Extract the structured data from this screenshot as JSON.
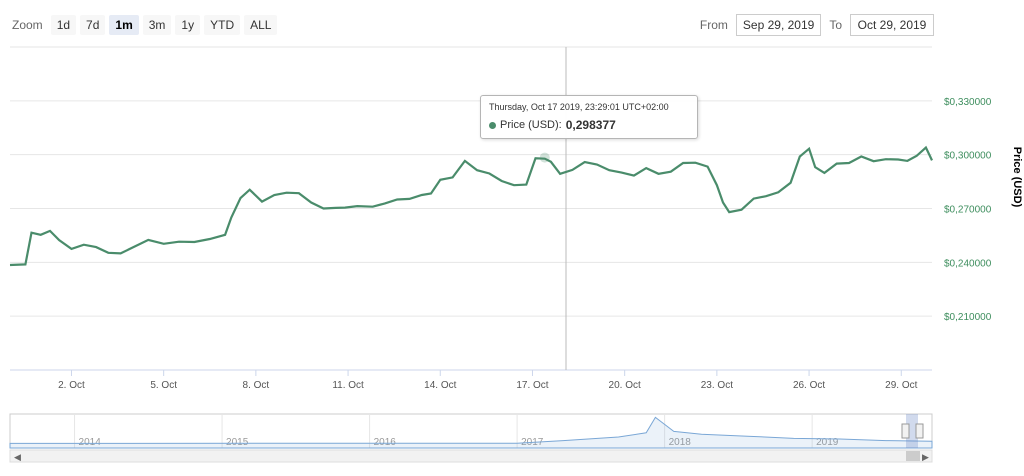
{
  "zoom": {
    "label": "Zoom",
    "buttons": [
      "1d",
      "7d",
      "1m",
      "3m",
      "1y",
      "YTD",
      "ALL"
    ],
    "active": "1m"
  },
  "range": {
    "from_label": "From",
    "from_value": "Sep 29, 2019",
    "to_label": "To",
    "to_value": "Oct 29, 2019"
  },
  "tooltip": {
    "date": "Thursday, Oct 17 2019, 23:29:01 UTC+02:00",
    "series_label": "Price (USD):",
    "value": "0,298377"
  },
  "colors": {
    "line": "#4a8c6b",
    "navigator_line": "#7aa7d6",
    "axis_text": "#3e8e5e"
  },
  "chart_data": {
    "type": "line",
    "ylabel": "Price (USD)",
    "ylim": [
      0.18,
      0.36
    ],
    "y_ticks": [
      "$0,210000",
      "$0,240000",
      "$0,270000",
      "$0,300000",
      "$0,330000"
    ],
    "y_tick_values": [
      0.21,
      0.24,
      0.27,
      0.3,
      0.33
    ],
    "x_ticks": [
      "2. Oct",
      "5. Oct",
      "8. Oct",
      "11. Oct",
      "14. Oct",
      "17. Oct",
      "20. Oct",
      "23. Oct",
      "26. Oct",
      "29. Oct"
    ],
    "x_tick_days": [
      2,
      5,
      8,
      11,
      14,
      17,
      20,
      23,
      26,
      29
    ],
    "xlim_days": [
      0.0,
      30.0
    ],
    "series": [
      {
        "name": "Price (USD)",
        "x_days": [
          0.0,
          0.5,
          0.7,
          1.0,
          1.3,
          1.6,
          2.0,
          2.4,
          2.8,
          3.2,
          3.6,
          4.0,
          4.5,
          5.0,
          5.5,
          6.0,
          6.5,
          7.0,
          7.2,
          7.5,
          7.8,
          8.2,
          8.6,
          9.0,
          9.4,
          9.8,
          10.2,
          10.6,
          10.9,
          11.3,
          11.8,
          12.2,
          12.6,
          13.0,
          13.4,
          13.7,
          14.0,
          14.4,
          14.8,
          15.2,
          15.6,
          16.0,
          16.4,
          16.8,
          17.1,
          17.4,
          17.6,
          17.9,
          18.3,
          18.7,
          19.1,
          19.5,
          19.9,
          20.3,
          20.7,
          21.1,
          21.5,
          21.9,
          22.3,
          22.7,
          23.0,
          23.2,
          23.4,
          23.8,
          24.2,
          24.6,
          25.0,
          25.4,
          25.7,
          26.0,
          26.2,
          26.5,
          26.9,
          27.3,
          27.7,
          28.1,
          28.5,
          28.9,
          29.2,
          29.5,
          29.8,
          30.0
        ],
        "values": [
          0.2385,
          0.2395,
          0.2565,
          0.256,
          0.2575,
          0.253,
          0.2475,
          0.2505,
          0.2485,
          0.246,
          0.245,
          0.249,
          0.2525,
          0.251,
          0.2515,
          0.252,
          0.253,
          0.256,
          0.265,
          0.2765,
          0.2805,
          0.2745,
          0.2775,
          0.2795,
          0.2785,
          0.274,
          0.27,
          0.271,
          0.2705,
          0.272,
          0.271,
          0.2735,
          0.275,
          0.276,
          0.2775,
          0.279,
          0.286,
          0.288,
          0.2965,
          0.292,
          0.2895,
          0.286,
          0.283,
          0.284,
          0.298,
          0.2984,
          0.296,
          0.29,
          0.2915,
          0.2965,
          0.2945,
          0.292,
          0.29,
          0.289,
          0.2925,
          0.29,
          0.2905,
          0.296,
          0.2955,
          0.294,
          0.283,
          0.274,
          0.268,
          0.27,
          0.2755,
          0.2775,
          0.279,
          0.285,
          0.299,
          0.304,
          0.293,
          0.2905,
          0.295,
          0.296,
          0.299,
          0.297,
          0.2975,
          0.298,
          0.2965,
          0.3,
          0.304,
          0.2975
        ]
      }
    ],
    "navigator": {
      "x_labels": [
        "2014",
        "2015",
        "2016",
        "2017",
        "2018",
        "2019"
      ],
      "label_positions": [
        0.07,
        0.23,
        0.39,
        0.55,
        0.71,
        0.87
      ]
    }
  }
}
